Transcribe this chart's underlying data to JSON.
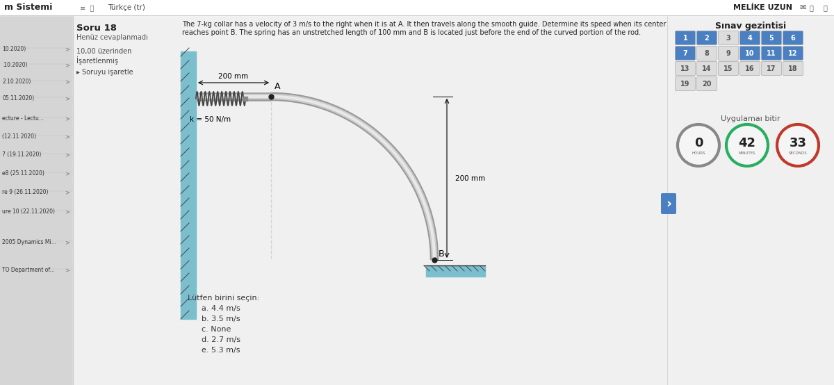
{
  "bg_color": "#d8d8d8",
  "left_panel_bg": "#d0d0d0",
  "main_bg": "#f2f2f2",
  "right_panel_bg": "#f0f0f0",
  "top_bar_text": "m Sistemi",
  "top_bar_right": "MELİKE UZUN",
  "language": "Türkçe (tr)",
  "question_number": "Soru 18",
  "question_status": "Henüz cevaplanmadı",
  "question_score": "10,00 üzerinden",
  "question_flagged": "İşaretlenmiş",
  "flag_label": "▸ Soruyu işaretle",
  "line1": "The 7-kg collar has a velocity of 3 m/s to the right when it is at A. It then travels along the smooth guide. Determine its speed when its center",
  "line2": "reaches point B. The spring has an unstretched length of 100 mm and B is located just before the end of the curved portion of the rod.",
  "choices_label": "Lütfen birini seçin:",
  "choices": [
    "a. 4.4 m/s",
    "b. 3.5 m/s",
    "c. None",
    "d. 2.7 m/s",
    "e. 5.3 m/s"
  ],
  "nav_title": "Sınav gezintisi",
  "nav_buttons_blue": [
    1,
    2,
    4,
    5,
    6,
    7,
    10,
    11,
    12
  ],
  "finish_label": "Uygulamaı bitir",
  "timer_hours_label": "HOURS",
  "timer_minutes_label": "MINUTES",
  "timer_seconds_label": "SECONDS",
  "timer_hours": "0",
  "timer_minutes": "42",
  "timer_seconds": "33",
  "sidebar_items": [
    ">",
    "10.2020)  >",
    ".10.2020)  >",
    "2.10.2020)  >",
    "05.11.2020)  >",
    "ecture - Lectu...  >",
    "(12.11.2020)  >",
    "7 (19.11.2020)  >",
    "e8 (25.11.2020)  >",
    "re 9 (26.11.2020)  >",
    "ure 10 (22.11.2020)  >",
    "2005 Dynamics  Mi...  >",
    "TO Department of...  >"
  ],
  "diagram_200mm_top": "200 mm",
  "diagram_200mm_right": "200 mm",
  "diagram_spring": "k = 50 N/m",
  "diagram_A": "A",
  "diagram_B": "B",
  "wall_color": "#7bbfcf",
  "rod_color_outer": "#999999",
  "rod_color_inner": "#cccccc",
  "rod_color_highlight": "#e8e8e8",
  "floor_color": "#7bbfcf",
  "spring_color": "#444444"
}
